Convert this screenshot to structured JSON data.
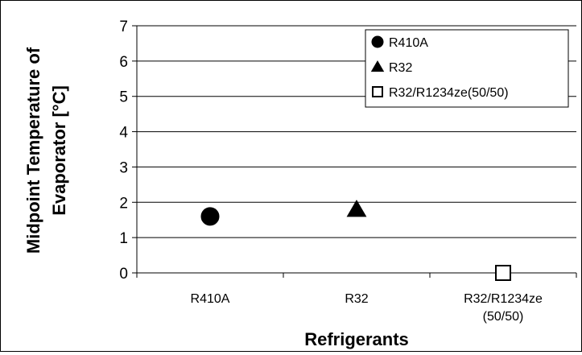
{
  "chart_data": {
    "type": "scatter",
    "title": "",
    "xlabel": "Refrigerants",
    "ylabel": "Midpoint Temperature of Evaporator [°C]",
    "ylabel_lines": [
      "Midpoint Temperature of",
      "Evaporator [°C]"
    ],
    "ylim": [
      0,
      7
    ],
    "yticks": [
      "0",
      "1",
      "2",
      "3",
      "4",
      "5",
      "6",
      "7"
    ],
    "grid": true,
    "legend_position": "top-right",
    "categories": [
      "R410A",
      "R32",
      "R32/R1234ze(50/50)"
    ],
    "category_labels": [
      [
        "R410A"
      ],
      [
        "R32"
      ],
      [
        "R32/R1234ze",
        "(50/50)"
      ]
    ],
    "series": [
      {
        "name": "R410A",
        "marker": "circle-filled",
        "category": "R410A",
        "value": 1.6
      },
      {
        "name": "R32",
        "marker": "triangle-filled",
        "category": "R32",
        "value": 1.8
      },
      {
        "name": "R32/R1234ze(50/50)",
        "marker": "square-open",
        "category": "R32/R1234ze(50/50)",
        "value": 0.0
      }
    ],
    "colors": {
      "marker": "#000000",
      "grid": "#000000",
      "background": "#ffffff"
    }
  }
}
